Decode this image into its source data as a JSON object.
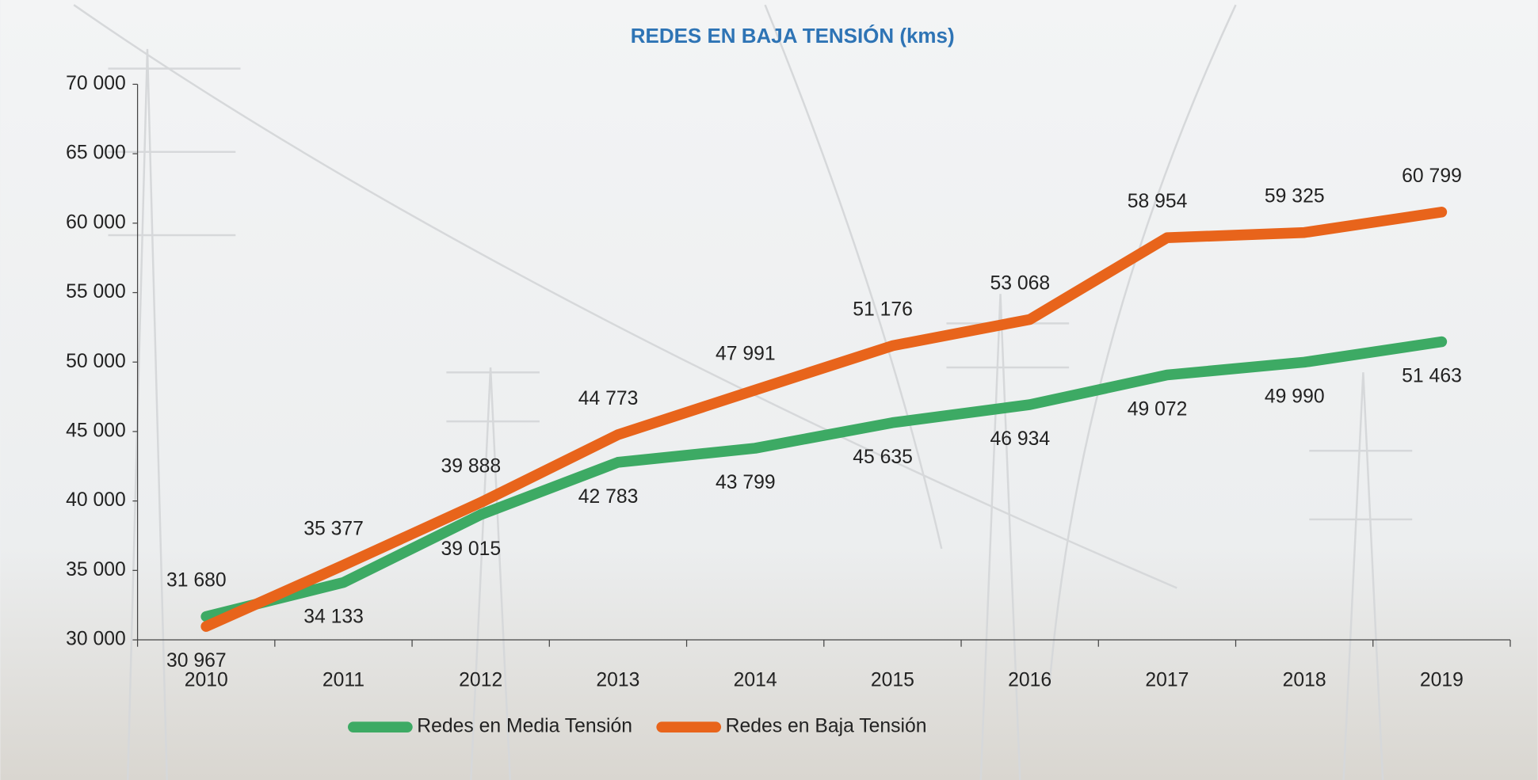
{
  "chart_data": {
    "type": "line",
    "title": "REDES EN BAJA TENSIÓN (kms)",
    "categories": [
      "2010",
      "2011",
      "2012",
      "2013",
      "2014",
      "2015",
      "2016",
      "2017",
      "2018",
      "2019"
    ],
    "series": [
      {
        "name": "Redes en Media Tensión",
        "color": "#3daa64",
        "values": [
          31680,
          34133,
          39015,
          42783,
          43799,
          45635,
          46934,
          49072,
          49990,
          51463
        ],
        "value_labels": [
          "31 680",
          "34 133",
          "39 015",
          "42 783",
          "43 799",
          "45 635",
          "46 934",
          "49 072",
          "49 990",
          "51 463"
        ]
      },
      {
        "name": "Redes en Baja Tensión",
        "color": "#e8641b",
        "values": [
          30967,
          35377,
          39888,
          44773,
          47991,
          51176,
          53068,
          58954,
          59325,
          60799
        ],
        "value_labels": [
          "30 967",
          "35 377",
          "39 888",
          "44 773",
          "47 991",
          "51 176",
          "53 068",
          "58 954",
          "59 325",
          "60 799"
        ]
      }
    ],
    "ylim": [
      30000,
      70000
    ],
    "yticks": [
      {
        "value": 30000,
        "label": "30 000"
      },
      {
        "value": 35000,
        "label": "35 000"
      },
      {
        "value": 40000,
        "label": "40 000"
      },
      {
        "value": 45000,
        "label": "45 000"
      },
      {
        "value": 50000,
        "label": "50 000"
      },
      {
        "value": 55000,
        "label": "55 000"
      },
      {
        "value": 60000,
        "label": "60 000"
      },
      {
        "value": 65000,
        "label": "65 000"
      },
      {
        "value": 70000,
        "label": "70 000"
      }
    ],
    "legend": "bottom"
  }
}
